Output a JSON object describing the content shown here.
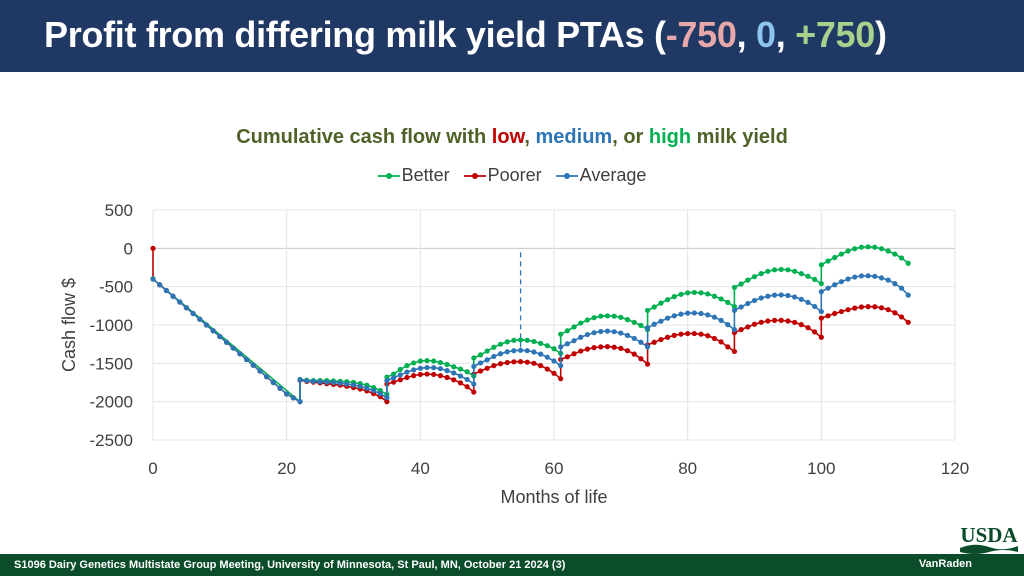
{
  "slide": {
    "title_prefix": "Profit from differing milk yield PTAs (",
    "title_low": "-750",
    "title_sep1": ", ",
    "title_med": "0",
    "title_sep2": ", ",
    "title_high": "+750",
    "title_suffix": ")",
    "footer_left": "S1096 Dairy Genetics Multistate Group Meeting, University of Minnesota, St Paul, MN, October 21 2024 (3)",
    "footer_right": "VanRaden",
    "logo_text": "USDA",
    "colors": {
      "header_bg": "#203864",
      "footer_bg": "#0b4d2a"
    }
  },
  "chart_title": {
    "part1": "Cumulative cash flow with ",
    "low": "low",
    "sep1": ", ",
    "medium": "medium",
    "sep2": ", or ",
    "high": "high",
    "part2": " milk yield"
  },
  "chart_data": {
    "type": "line",
    "xlabel": "Months of life",
    "ylabel": "Cash flow $",
    "xlim": [
      0,
      120
    ],
    "ylim": [
      -2500,
      500
    ],
    "xticks": [
      0,
      20,
      40,
      60,
      80,
      100,
      120
    ],
    "yticks": [
      500,
      0,
      -500,
      -1000,
      -1500,
      -2000,
      -2500
    ],
    "grid": true,
    "legend_position": "top",
    "reference_line_x": 55,
    "series": [
      {
        "name": "Better",
        "color": "#00b050",
        "x": [
          0,
          0,
          22,
          22,
          23,
          24,
          25,
          26,
          27,
          28,
          29,
          30,
          31,
          32,
          33,
          34,
          35,
          35,
          36,
          37,
          38,
          39,
          40,
          41,
          42,
          43,
          44,
          45,
          46,
          47,
          48,
          48,
          49,
          50,
          51,
          52,
          53,
          54,
          55,
          56,
          57,
          58,
          59,
          60,
          61,
          61,
          62,
          63,
          64,
          65,
          66,
          67,
          68,
          69,
          70,
          71,
          72,
          73,
          74,
          74,
          75,
          76,
          77,
          78,
          79,
          80,
          81,
          82,
          83,
          84,
          85,
          86,
          87,
          87,
          88,
          89,
          90,
          91,
          92,
          93,
          94,
          95,
          96,
          97,
          98,
          99,
          100,
          100,
          101,
          102,
          103,
          104,
          105,
          106,
          107,
          108,
          109,
          110,
          111,
          112,
          113
        ],
        "y": [
          -400,
          -400,
          -2000,
          -1710,
          -1720,
          -1725,
          -1725,
          -1725,
          -1730,
          -1735,
          -1740,
          -1750,
          -1765,
          -1785,
          -1815,
          -1855,
          -1905,
          -1680,
          -1640,
          -1580,
          -1530,
          -1495,
          -1470,
          -1465,
          -1470,
          -1490,
          -1515,
          -1545,
          -1575,
          -1610,
          -1665,
          -1430,
          -1390,
          -1340,
          -1290,
          -1250,
          -1220,
          -1200,
          -1195,
          -1200,
          -1215,
          -1240,
          -1270,
          -1310,
          -1370,
          -1120,
          -1075,
          -1025,
          -975,
          -935,
          -905,
          -885,
          -880,
          -885,
          -900,
          -930,
          -965,
          -1005,
          -1060,
          -810,
          -765,
          -715,
          -670,
          -630,
          -600,
          -580,
          -575,
          -580,
          -595,
          -625,
          -660,
          -705,
          -760,
          -510,
          -465,
          -415,
          -370,
          -330,
          -300,
          -280,
          -275,
          -280,
          -300,
          -330,
          -365,
          -405,
          -460,
          -215,
          -165,
          -120,
          -75,
          -35,
          -5,
          15,
          20,
          15,
          -5,
          -35,
          -75,
          -125,
          -195
        ]
      },
      {
        "name": "Poorer",
        "color": "#c00000",
        "x": [
          0,
          0,
          1,
          2,
          3,
          4,
          5,
          6,
          7,
          8,
          9,
          10,
          11,
          12,
          13,
          14,
          15,
          16,
          17,
          18,
          19,
          20,
          21,
          22,
          22,
          23,
          24,
          25,
          26,
          27,
          28,
          29,
          30,
          31,
          32,
          33,
          34,
          35,
          35,
          36,
          37,
          38,
          39,
          40,
          41,
          42,
          43,
          44,
          45,
          46,
          47,
          48,
          48,
          49,
          50,
          51,
          52,
          53,
          54,
          55,
          56,
          57,
          58,
          59,
          60,
          61,
          61,
          62,
          63,
          64,
          65,
          66,
          67,
          68,
          69,
          70,
          71,
          72,
          73,
          74,
          74,
          75,
          76,
          77,
          78,
          79,
          80,
          81,
          82,
          83,
          84,
          85,
          86,
          87,
          87,
          88,
          89,
          90,
          91,
          92,
          93,
          94,
          95,
          96,
          97,
          98,
          99,
          100,
          100,
          101,
          102,
          103,
          104,
          105,
          106,
          107,
          108,
          109,
          110,
          111,
          112,
          113
        ],
        "y": [
          0,
          -400,
          -475,
          -550,
          -625,
          -700,
          -775,
          -850,
          -925,
          -1000,
          -1075,
          -1150,
          -1225,
          -1300,
          -1375,
          -1450,
          -1525,
          -1600,
          -1675,
          -1750,
          -1825,
          -1900,
          -1950,
          -2000,
          -1720,
          -1735,
          -1745,
          -1755,
          -1765,
          -1775,
          -1785,
          -1800,
          -1815,
          -1835,
          -1860,
          -1895,
          -1935,
          -2000,
          -1770,
          -1745,
          -1715,
          -1685,
          -1660,
          -1645,
          -1640,
          -1645,
          -1660,
          -1685,
          -1715,
          -1755,
          -1805,
          -1875,
          -1640,
          -1600,
          -1565,
          -1530,
          -1505,
          -1490,
          -1480,
          -1478,
          -1485,
          -1500,
          -1530,
          -1575,
          -1630,
          -1700,
          -1450,
          -1415,
          -1375,
          -1340,
          -1315,
          -1295,
          -1285,
          -1282,
          -1290,
          -1305,
          -1335,
          -1380,
          -1440,
          -1510,
          -1260,
          -1225,
          -1190,
          -1160,
          -1135,
          -1120,
          -1112,
          -1112,
          -1120,
          -1140,
          -1175,
          -1220,
          -1285,
          -1345,
          -1100,
          -1060,
          -1025,
          -990,
          -965,
          -948,
          -940,
          -940,
          -948,
          -965,
          -995,
          -1035,
          -1090,
          -1160,
          -910,
          -880,
          -850,
          -825,
          -800,
          -780,
          -765,
          -760,
          -762,
          -775,
          -800,
          -840,
          -895,
          -965
        ]
      },
      {
        "name": "Average",
        "color": "#2e75b6",
        "x": [
          0,
          1,
          2,
          3,
          4,
          5,
          6,
          7,
          8,
          9,
          10,
          11,
          12,
          13,
          14,
          15,
          16,
          17,
          18,
          19,
          20,
          21,
          22,
          22,
          23,
          24,
          25,
          26,
          27,
          28,
          29,
          30,
          31,
          32,
          33,
          34,
          35,
          35,
          36,
          37,
          38,
          39,
          40,
          41,
          42,
          43,
          44,
          45,
          46,
          47,
          48,
          48,
          49,
          50,
          51,
          52,
          53,
          54,
          55,
          56,
          57,
          58,
          59,
          60,
          61,
          61,
          62,
          63,
          64,
          65,
          66,
          67,
          68,
          69,
          70,
          71,
          72,
          73,
          74,
          74,
          75,
          76,
          77,
          78,
          79,
          80,
          81,
          82,
          83,
          84,
          85,
          86,
          87,
          87,
          88,
          89,
          90,
          91,
          92,
          93,
          94,
          95,
          96,
          97,
          98,
          99,
          100,
          100,
          101,
          102,
          103,
          104,
          105,
          106,
          107,
          108,
          109,
          110,
          111,
          112,
          113
        ],
        "y": [
          -400,
          -475,
          -550,
          -625,
          -700,
          -775,
          -850,
          -925,
          -1000,
          -1075,
          -1150,
          -1225,
          -1300,
          -1375,
          -1450,
          -1525,
          -1600,
          -1675,
          -1750,
          -1825,
          -1900,
          -1950,
          -2000,
          -1715,
          -1728,
          -1735,
          -1740,
          -1745,
          -1750,
          -1758,
          -1770,
          -1783,
          -1800,
          -1825,
          -1855,
          -1895,
          -1950,
          -1725,
          -1690,
          -1650,
          -1615,
          -1585,
          -1565,
          -1555,
          -1557,
          -1570,
          -1595,
          -1625,
          -1665,
          -1710,
          -1770,
          -1540,
          -1495,
          -1455,
          -1410,
          -1375,
          -1350,
          -1335,
          -1330,
          -1335,
          -1352,
          -1380,
          -1420,
          -1470,
          -1530,
          -1285,
          -1245,
          -1205,
          -1160,
          -1125,
          -1100,
          -1085,
          -1080,
          -1087,
          -1105,
          -1135,
          -1175,
          -1225,
          -1285,
          -1035,
          -990,
          -950,
          -910,
          -880,
          -858,
          -845,
          -843,
          -850,
          -868,
          -898,
          -940,
          -995,
          -1060,
          -810,
          -765,
          -720,
          -680,
          -648,
          -625,
          -610,
          -608,
          -615,
          -635,
          -665,
          -705,
          -758,
          -825,
          -565,
          -520,
          -475,
          -435,
          -400,
          -375,
          -360,
          -358,
          -365,
          -385,
          -415,
          -460,
          -520,
          -610
        ]
      }
    ]
  }
}
